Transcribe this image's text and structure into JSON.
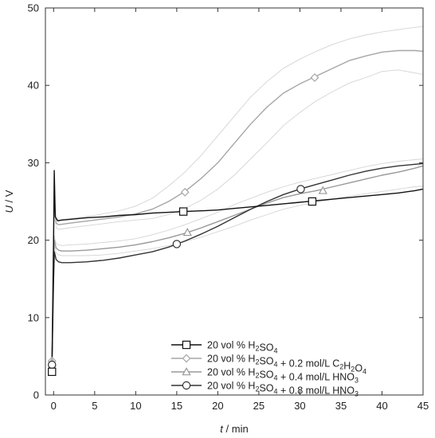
{
  "chart_data": {
    "type": "line",
    "xlabel": {
      "var": "t",
      "unit": " / min"
    },
    "ylabel": {
      "var": "U",
      "unit": " / V"
    },
    "xlim": [
      -1,
      45
    ],
    "ylim": [
      0,
      50
    ],
    "xticks": [
      0,
      5,
      10,
      15,
      20,
      25,
      30,
      35,
      40,
      45
    ],
    "yticks": [
      0,
      10,
      20,
      30,
      40,
      50
    ],
    "grid": false,
    "legend_position": "bottom-right",
    "series": [
      {
        "name": "20 vol % H2SO4",
        "legend": {
          "parts": [
            [
              "20 vol % H",
              false
            ],
            [
              "2",
              true
            ],
            [
              "SO",
              false
            ],
            [
              "4",
              true
            ]
          ]
        },
        "color": "#111111",
        "marker": "square",
        "marker_points": [
          [
            -0.2,
            3.0
          ],
          [
            15.8,
            23.7
          ],
          [
            31.5,
            25.0
          ]
        ],
        "band": false,
        "x": [
          -0.2,
          0.0,
          0.08,
          0.2,
          0.5,
          1,
          2,
          4,
          6,
          8,
          10,
          12,
          14,
          16,
          18,
          20,
          22,
          24,
          26,
          28,
          30,
          32,
          34,
          36,
          38,
          40,
          42,
          44,
          45
        ],
        "y": [
          3.0,
          20,
          29.0,
          23.0,
          22.5,
          22.6,
          22.7,
          22.9,
          23.0,
          23.2,
          23.3,
          23.5,
          23.6,
          23.7,
          23.8,
          23.9,
          24.1,
          24.3,
          24.5,
          24.7,
          24.9,
          25.1,
          25.3,
          25.5,
          25.7,
          25.9,
          26.1,
          26.4,
          26.6
        ]
      },
      {
        "name": "20 vol % H2SO4 + 0.2 mol/L C2H2O4",
        "legend": {
          "parts": [
            [
              "20 vol % H",
              false
            ],
            [
              "2",
              true
            ],
            [
              "SO",
              false
            ],
            [
              "4",
              true
            ],
            [
              " + 0.2 mol/L C",
              false
            ],
            [
              "2",
              true
            ],
            [
              "H",
              false
            ],
            [
              "2",
              true
            ],
            [
              "O",
              false
            ],
            [
              "4",
              true
            ]
          ]
        },
        "color": "#a6a6a6",
        "marker": "diamond",
        "marker_points": [
          [
            -0.2,
            4.4
          ],
          [
            16.0,
            26.2
          ],
          [
            31.8,
            41.0
          ]
        ],
        "band": true,
        "x": [
          -0.2,
          0.0,
          0.1,
          0.3,
          0.6,
          2,
          5,
          8,
          10,
          12,
          14,
          16,
          18,
          20,
          22,
          24,
          26,
          28,
          30,
          32,
          34,
          36,
          38,
          40,
          42,
          44,
          45
        ],
        "y": [
          4.4,
          22,
          25.0,
          22.2,
          22.0,
          22.2,
          22.6,
          23.0,
          23.4,
          24.0,
          25.0,
          26.3,
          28.0,
          30.0,
          32.5,
          35.0,
          37.2,
          39.0,
          40.2,
          41.2,
          42.2,
          43.2,
          43.8,
          44.3,
          44.5,
          44.5,
          44.4
        ],
        "y_upper": [
          4.4,
          22.6,
          25.6,
          22.8,
          22.6,
          22.8,
          23.2,
          23.8,
          24.4,
          25.4,
          27.0,
          28.8,
          31.0,
          33.5,
          36.0,
          38.5,
          40.5,
          42.2,
          43.4,
          44.4,
          45.3,
          46.0,
          46.5,
          46.9,
          47.2,
          47.5,
          47.6
        ],
        "y_lower": [
          4.4,
          21.4,
          24.4,
          21.6,
          21.4,
          21.6,
          22.0,
          22.4,
          22.6,
          22.8,
          23.3,
          24.1,
          25.2,
          26.6,
          28.4,
          30.5,
          32.6,
          34.8,
          36.5,
          38.0,
          39.2,
          40.3,
          41.0,
          41.8,
          42.0,
          41.6,
          41.4
        ]
      },
      {
        "name": "20 vol % H2SO4 + 0.4 mol/L HNO3",
        "legend": {
          "parts": [
            [
              "20 vol % H",
              false
            ],
            [
              "2",
              true
            ],
            [
              "SO",
              false
            ],
            [
              "4",
              true
            ],
            [
              " + 0.4 mol/L HNO",
              false
            ],
            [
              "3",
              true
            ]
          ]
        },
        "color": "#999999",
        "marker": "triangle",
        "marker_points": [
          [
            -0.2,
            4.2
          ],
          [
            16.3,
            21.0
          ],
          [
            32.8,
            26.4
          ]
        ],
        "band": true,
        "x": [
          -0.2,
          0.0,
          0.1,
          0.3,
          0.6,
          1,
          2,
          4,
          6,
          8,
          10,
          12,
          14,
          16,
          18,
          20,
          22,
          24,
          26,
          28,
          30,
          32,
          34,
          36,
          38,
          40,
          42,
          44,
          45
        ],
        "y": [
          4.2,
          17,
          20.0,
          19.0,
          18.7,
          18.6,
          18.6,
          18.7,
          18.9,
          19.1,
          19.4,
          19.8,
          20.3,
          20.9,
          21.6,
          22.4,
          23.2,
          24.0,
          24.8,
          25.5,
          26.0,
          26.4,
          26.9,
          27.4,
          27.9,
          28.4,
          28.8,
          29.3,
          29.6
        ],
        "y_upper": [
          4.2,
          17.6,
          20.6,
          19.6,
          19.4,
          19.3,
          19.4,
          19.5,
          19.7,
          19.9,
          20.2,
          20.7,
          21.3,
          22.0,
          22.8,
          23.6,
          24.6,
          25.4,
          26.2,
          26.9,
          27.5,
          28.0,
          28.5,
          29.0,
          29.5,
          29.9,
          30.2,
          30.4,
          30.5
        ],
        "y_lower": [
          4.2,
          16.4,
          19.4,
          18.4,
          18.1,
          18.0,
          18.0,
          18.0,
          18.1,
          18.3,
          18.6,
          18.9,
          19.3,
          19.8,
          20.4,
          21.1,
          21.8,
          22.6,
          23.3,
          24.0,
          24.5,
          24.9,
          25.3,
          25.7,
          26.0,
          26.3,
          26.6,
          26.9,
          27.0
        ]
      },
      {
        "name": "20 vol % H2SO4 + 0.8 mol/L HNO3",
        "legend": {
          "parts": [
            [
              "20 vol % H",
              false
            ],
            [
              "2",
              true
            ],
            [
              "SO",
              false
            ],
            [
              "4",
              true
            ],
            [
              " + 0.8 mol/L HNO",
              false
            ],
            [
              "3",
              true
            ]
          ]
        },
        "color": "#333333",
        "marker": "circle",
        "marker_points": [
          [
            -0.2,
            3.9
          ],
          [
            15.0,
            19.5
          ],
          [
            30.1,
            26.6
          ]
        ],
        "band": false,
        "x": [
          -0.2,
          0.0,
          0.1,
          0.3,
          0.6,
          1,
          2,
          4,
          6,
          8,
          10,
          12,
          14,
          16,
          18,
          20,
          22,
          24,
          26,
          28,
          30,
          32,
          34,
          36,
          38,
          40,
          42,
          44,
          45
        ],
        "y": [
          3.9,
          15,
          18.5,
          17.5,
          17.2,
          17.1,
          17.1,
          17.2,
          17.4,
          17.7,
          18.1,
          18.5,
          19.1,
          19.9,
          20.8,
          21.8,
          22.9,
          24.0,
          25.0,
          25.9,
          26.6,
          27.2,
          27.8,
          28.4,
          28.9,
          29.3,
          29.6,
          29.8,
          29.9
        ]
      }
    ]
  }
}
